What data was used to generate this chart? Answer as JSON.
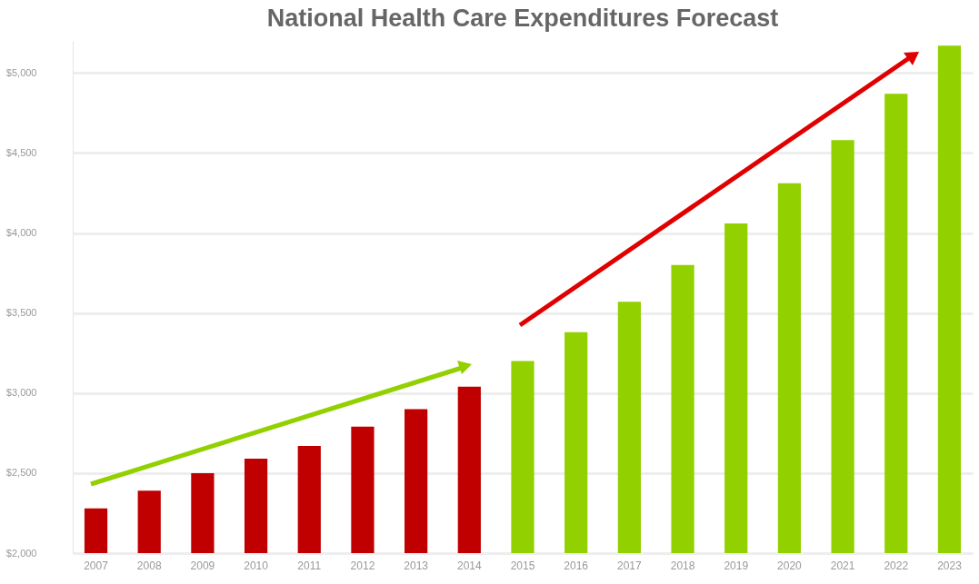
{
  "chart_data": {
    "type": "bar",
    "title": "National Health Care Expenditures Forecast",
    "categories": [
      "2007",
      "2008",
      "2009",
      "2010",
      "2011",
      "2012",
      "2013",
      "2014",
      "2015",
      "2016",
      "2017",
      "2018",
      "2019",
      "2020",
      "2021",
      "2022",
      "2023"
    ],
    "values": [
      2280,
      2390,
      2500,
      2590,
      2670,
      2790,
      2900,
      3040,
      3200,
      3380,
      3570,
      3800,
      4060,
      4310,
      4580,
      4870,
      5170
    ],
    "colors": [
      "#c00000",
      "#c00000",
      "#c00000",
      "#c00000",
      "#c00000",
      "#c00000",
      "#c00000",
      "#c00000",
      "#92d000",
      "#92d000",
      "#92d000",
      "#92d000",
      "#92d000",
      "#92d000",
      "#92d000",
      "#92d000",
      "#92d000"
    ],
    "ylim": [
      2000,
      5200
    ],
    "yticks": [
      {
        "value": 2000,
        "label": "$2,000"
      },
      {
        "value": 2500,
        "label": "$2,500"
      },
      {
        "value": 3000,
        "label": "$3,000"
      },
      {
        "value": 3500,
        "label": "$3,500"
      },
      {
        "value": 4000,
        "label": "$4,000"
      },
      {
        "value": 4500,
        "label": "$4,500"
      },
      {
        "value": 5000,
        "label": "$5,000"
      }
    ],
    "grid": "y"
  }
}
